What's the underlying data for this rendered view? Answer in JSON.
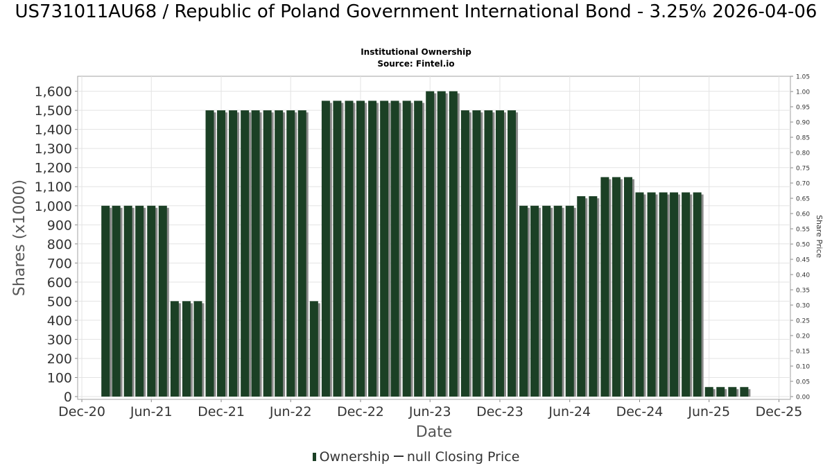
{
  "chart_data": {
    "type": "bar",
    "title": "US731011AU68 / Republic of Poland Government International Bond - 3.25% 2026-04-06",
    "subtitle": "Institutional Ownership",
    "source": "Source: Fintel.io",
    "xlabel": "Date",
    "ylabel": "Shares (x1000)",
    "y2label": "Share Price",
    "ylim": [
      0,
      1680
    ],
    "y2lim": [
      0,
      1.05
    ],
    "xlim": [
      "2020-11-20",
      "2025-12-31"
    ],
    "y_ticks": [
      0,
      100,
      200,
      300,
      400,
      500,
      600,
      700,
      800,
      900,
      1000,
      1100,
      1200,
      1300,
      1400,
      1500,
      1600
    ],
    "y_tick_labels": [
      "0",
      "100",
      "200",
      "300",
      "400",
      "500",
      "600",
      "700",
      "800",
      "900",
      "1,000",
      "1,100",
      "1,200",
      "1,300",
      "1,400",
      "1,500",
      "1,600"
    ],
    "y2_ticks": [
      0.0,
      0.05,
      0.1,
      0.15,
      0.2,
      0.25,
      0.3,
      0.35,
      0.4,
      0.45,
      0.5,
      0.55,
      0.6,
      0.65,
      0.7,
      0.75,
      0.8,
      0.85,
      0.9,
      0.95,
      1.0,
      1.05
    ],
    "y2_tick_labels": [
      "0.00",
      "0.05",
      "0.10",
      "0.15",
      "0.20",
      "0.25",
      "0.30",
      "0.35",
      "0.40",
      "0.45",
      "0.50",
      "0.55",
      "0.60",
      "0.65",
      "0.70",
      "0.75",
      "0.80",
      "0.85",
      "0.90",
      "0.95",
      "1.00",
      "1.05"
    ],
    "x_ticks": [
      "2020-12-01",
      "2021-06-01",
      "2021-12-01",
      "2022-06-01",
      "2022-12-01",
      "2023-06-01",
      "2023-12-01",
      "2024-06-01",
      "2024-12-01",
      "2025-06-01",
      "2025-12-01"
    ],
    "x_tick_labels": [
      "Dec-20",
      "Jun-21",
      "Dec-21",
      "Jun-22",
      "Dec-22",
      "Jun-23",
      "Dec-23",
      "Jun-24",
      "Dec-24",
      "Jun-25",
      "Dec-25"
    ],
    "grid": true,
    "legend_position": "bottom",
    "bar_color": "#1b4025",
    "series": [
      {
        "name": "Ownership",
        "x": [
          "2021-02-01",
          "2021-03-01",
          "2021-04-01",
          "2021-05-01",
          "2021-06-01",
          "2021-07-01",
          "2021-08-01",
          "2021-09-01",
          "2021-10-01",
          "2021-11-01",
          "2021-12-01",
          "2022-01-01",
          "2022-02-01",
          "2022-03-01",
          "2022-04-01",
          "2022-05-01",
          "2022-06-01",
          "2022-07-01",
          "2022-08-01",
          "2022-09-01",
          "2022-10-01",
          "2022-11-01",
          "2022-12-01",
          "2023-01-01",
          "2023-02-01",
          "2023-03-01",
          "2023-04-01",
          "2023-05-01",
          "2023-06-01",
          "2023-07-01",
          "2023-08-01",
          "2023-09-01",
          "2023-10-01",
          "2023-11-01",
          "2023-12-01",
          "2024-01-01",
          "2024-02-01",
          "2024-03-01",
          "2024-04-01",
          "2024-05-01",
          "2024-06-01",
          "2024-07-01",
          "2024-08-01",
          "2024-09-01",
          "2024-10-01",
          "2024-11-01",
          "2024-12-01",
          "2025-01-01",
          "2025-02-01",
          "2025-03-01",
          "2025-04-01",
          "2025-05-01",
          "2025-06-01",
          "2025-07-01",
          "2025-08-01",
          "2025-09-01"
        ],
        "values": [
          1000,
          1000,
          1000,
          1000,
          1000,
          1000,
          500,
          500,
          500,
          1500,
          1500,
          1500,
          1500,
          1500,
          1500,
          1500,
          1500,
          1500,
          500,
          1550,
          1550,
          1550,
          1550,
          1550,
          1550,
          1550,
          1550,
          1550,
          1600,
          1600,
          1600,
          1500,
          1500,
          1500,
          1500,
          1500,
          1000,
          1000,
          1000,
          1000,
          1000,
          1050,
          1050,
          1150,
          1150,
          1150,
          1070,
          1070,
          1070,
          1070,
          1070,
          1070,
          50,
          50,
          50,
          50
        ]
      },
      {
        "name": "null Closing Price",
        "x": [],
        "values": []
      }
    ]
  }
}
